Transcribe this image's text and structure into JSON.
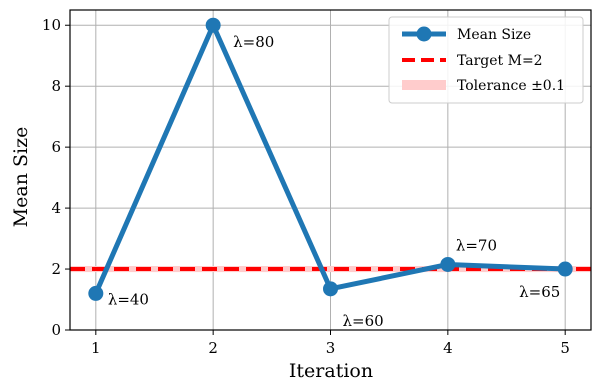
{
  "chart_data": {
    "type": "line",
    "xlabel": "Iteration",
    "ylabel": "Mean Size",
    "xlim": [
      0.78,
      5.22
    ],
    "ylim": [
      0,
      10.5
    ],
    "xticks": [
      1,
      2,
      3,
      4,
      5
    ],
    "yticks": [
      0,
      2,
      4,
      6,
      8,
      10
    ],
    "grid": true,
    "legend_position": "top-right",
    "series": [
      {
        "name": "Mean Size",
        "color": "#1f77b4",
        "x": [
          1,
          2,
          3,
          4,
          5
        ],
        "y": [
          1.2,
          10.0,
          1.35,
          2.15,
          2.0
        ]
      }
    ],
    "target": {
      "name": "Target M=2",
      "value": 2,
      "color": "#ff0000"
    },
    "tolerance": {
      "name": "Tolerance ±0.1",
      "min": 1.9,
      "max": 2.1,
      "color": "#ffcccc"
    },
    "annotations": [
      {
        "text": "λ=40",
        "x": 1,
        "y": 1.2
      },
      {
        "text": "λ=80",
        "x": 2,
        "y": 10.0
      },
      {
        "text": "λ=60",
        "x": 3,
        "y": 1.35
      },
      {
        "text": "λ=70",
        "x": 4,
        "y": 2.15
      },
      {
        "text": "λ=65",
        "x": 5,
        "y": 2.0
      }
    ]
  }
}
